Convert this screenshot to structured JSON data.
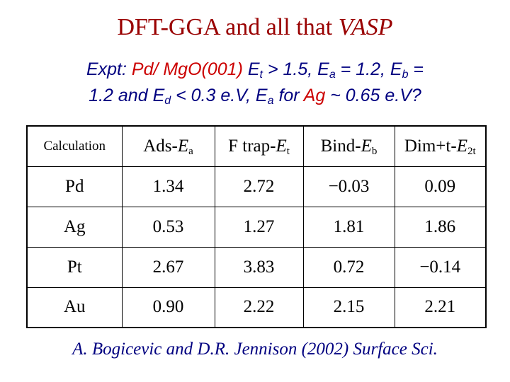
{
  "title": {
    "text": "DFT-GGA and all that ",
    "italic": "VASP"
  },
  "subtitle": {
    "prefix": "Expt: ",
    "system": "Pd/ MgO(001)",
    "et_sym": "E",
    "et_sub": "t",
    "et_rest": " > 1.5, ",
    "ea_sym": "E",
    "ea_sub": "a",
    "ea_rest": " = 1.2, ",
    "eb_sym": "E",
    "eb_sub": "b",
    "eb_rest": " =",
    "line2_a": "1.2 and ",
    "ed_sym": "E",
    "ed_sub": "d",
    "ed_rest": " < 0.3 e.V, ",
    "ea2_sym": "E",
    "ea2_sub": "a",
    "ea2_rest": "  for ",
    "metal": "Ag",
    "tail": " ~ 0.65 e.V?"
  },
  "table": {
    "headers": [
      {
        "text": "Calculation",
        "sym": "",
        "sub": ""
      },
      {
        "text": "Ads-",
        "sym": "E",
        "sub": "a"
      },
      {
        "text": "F trap-",
        "sym": "E",
        "sub": "t"
      },
      {
        "text": "Bind-",
        "sym": "E",
        "sub": "b"
      },
      {
        "text": "Dim+t-",
        "sym": "E",
        "sub": "2t"
      }
    ],
    "rows": [
      [
        "Pd",
        "1.34",
        "2.72",
        "−0.03",
        "0.09"
      ],
      [
        "Ag",
        "0.53",
        "1.27",
        "1.81",
        "1.86"
      ],
      [
        "Pt",
        "2.67",
        "3.83",
        "0.72",
        "−0.14"
      ],
      [
        "Au",
        "0.90",
        "2.22",
        "2.15",
        "2.21"
      ]
    ]
  },
  "citation": "A. Bogicevic and D.R. Jennison (2002) Surface Sci.",
  "colors": {
    "title": "#990000",
    "accent": "#cc0000",
    "body_text": "#000080"
  }
}
